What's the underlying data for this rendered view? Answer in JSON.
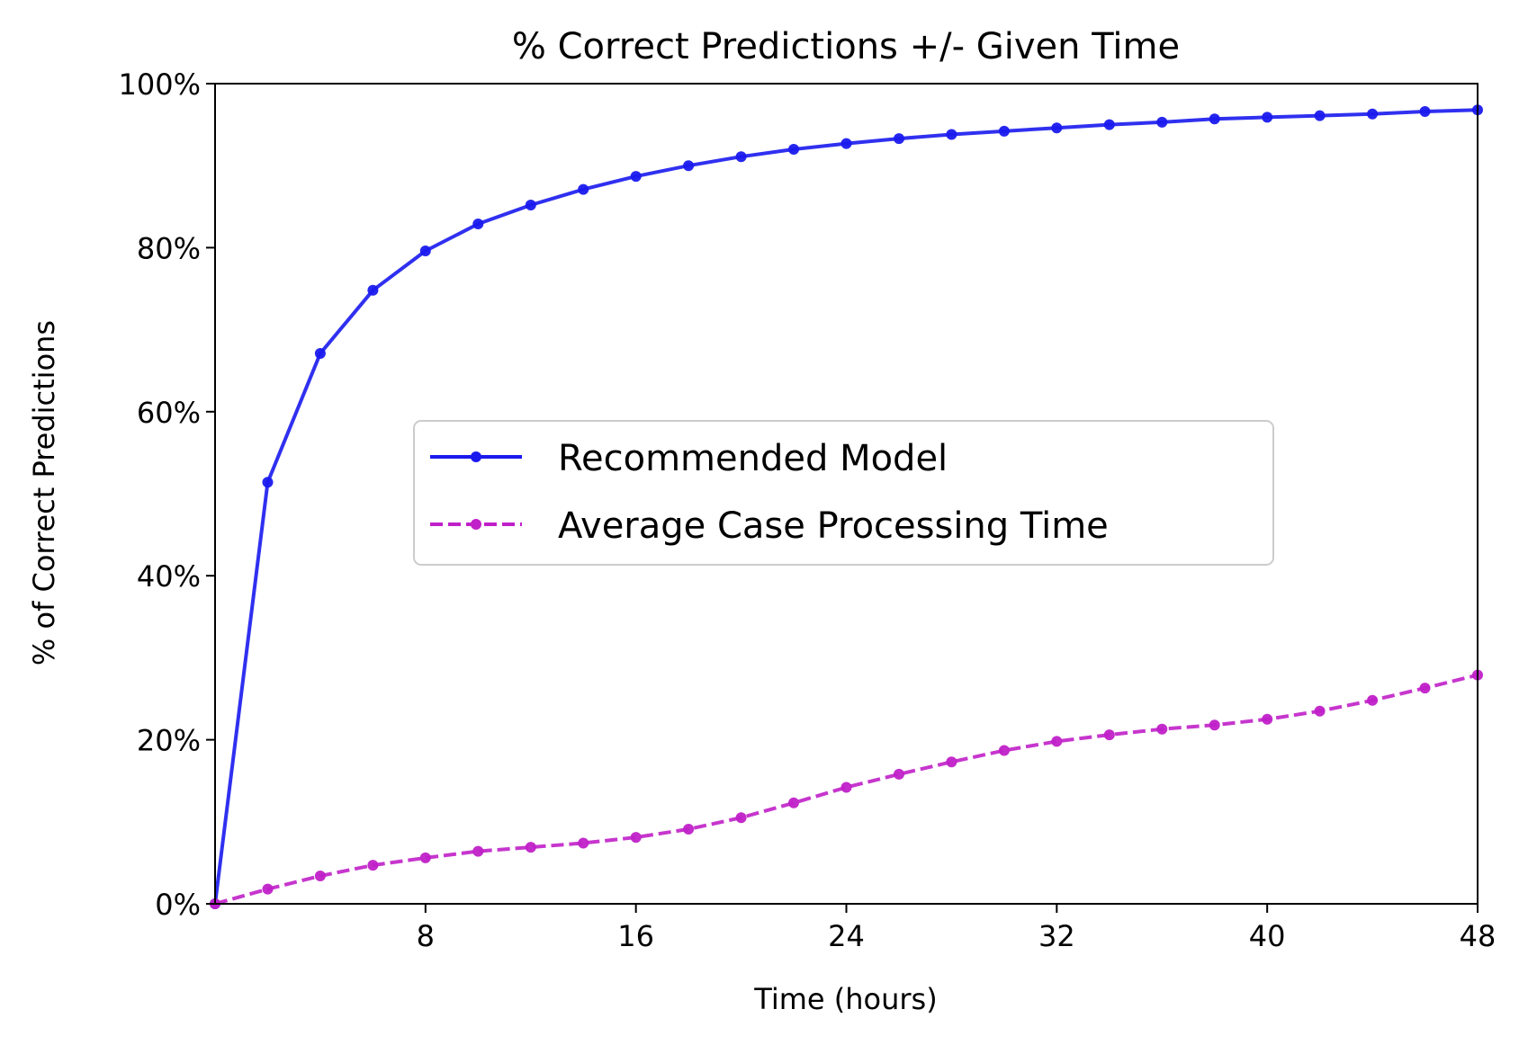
{
  "chart_data": {
    "type": "line",
    "title": "% Correct Predictions +/- Given Time",
    "xlabel": "Time (hours)",
    "ylabel": "% of Correct Predictions",
    "xlim": [
      0,
      48
    ],
    "ylim": [
      0,
      100
    ],
    "x_ticks": [
      8,
      16,
      24,
      32,
      40,
      48
    ],
    "x_tick_labels": [
      "8",
      "16",
      "24",
      "32",
      "40",
      "48"
    ],
    "y_ticks": [
      0,
      20,
      40,
      60,
      80,
      100
    ],
    "y_tick_labels": [
      "0%",
      "20%",
      "40%",
      "60%",
      "80%",
      "100%"
    ],
    "grid": false,
    "legend_position": "center-right",
    "x": [
      0,
      2,
      4,
      6,
      8,
      10,
      12,
      14,
      16,
      18,
      20,
      22,
      24,
      26,
      28,
      30,
      32,
      34,
      36,
      38,
      40,
      42,
      44,
      46,
      48
    ],
    "series": [
      {
        "name": "Recommended Model",
        "color": "#1a1aee",
        "line_style": "solid",
        "marker": "circle",
        "values": [
          0,
          51.4,
          67.1,
          74.8,
          79.6,
          82.9,
          85.2,
          87.1,
          88.7,
          90.0,
          91.1,
          92.0,
          92.7,
          93.3,
          93.8,
          94.2,
          94.6,
          95.0,
          95.3,
          95.7,
          95.9,
          96.1,
          96.3,
          96.6,
          96.8
        ]
      },
      {
        "name": "Average Case Processing Time",
        "color": "#c020c8",
        "line_style": "dashed",
        "marker": "circle",
        "values": [
          0,
          1.8,
          3.4,
          4.7,
          5.6,
          6.4,
          6.9,
          7.4,
          8.1,
          9.1,
          10.5,
          12.3,
          14.2,
          15.8,
          17.3,
          18.7,
          19.8,
          20.6,
          21.3,
          21.8,
          22.5,
          23.5,
          24.8,
          26.3,
          27.9
        ]
      }
    ]
  }
}
